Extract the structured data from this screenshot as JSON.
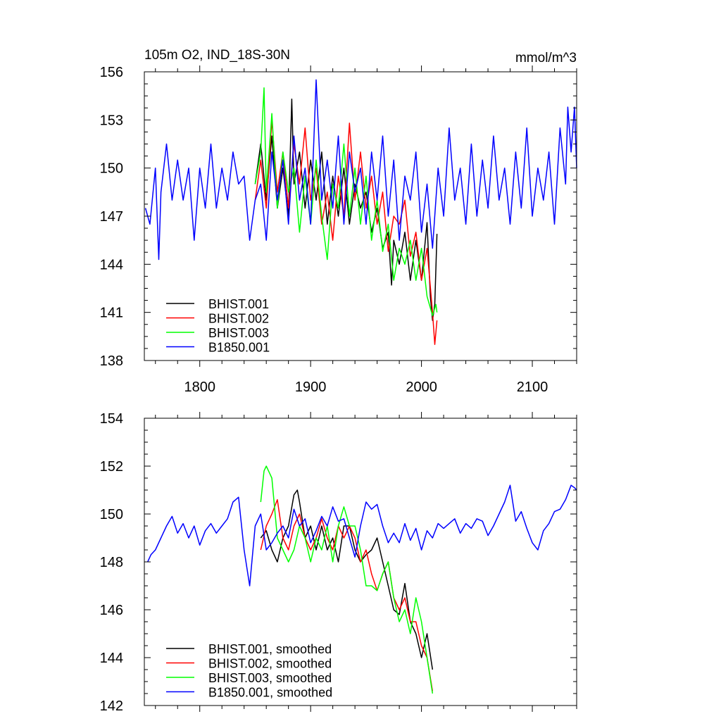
{
  "chart_data": [
    {
      "type": "line",
      "title": "105m O2, IND_18S-30N",
      "units": "mmol/m^3",
      "xlim": [
        1750,
        2140
      ],
      "ylim": [
        138,
        156
      ],
      "xticks": [
        1800,
        1900,
        2000,
        2100
      ],
      "yticks": [
        138,
        141,
        144,
        147,
        150,
        153,
        156
      ],
      "show_x_tick_labels": true,
      "grid": false,
      "legend_position": "bottom-left",
      "series": [
        {
          "name": "BHIST.001",
          "color": "#000000",
          "x": [
            1850,
            1855,
            1860,
            1865,
            1870,
            1875,
            1880,
            1883,
            1885,
            1890,
            1895,
            1900,
            1905,
            1910,
            1915,
            1920,
            1925,
            1930,
            1935,
            1940,
            1945,
            1950,
            1955,
            1960,
            1965,
            1970,
            1973,
            1975,
            1980,
            1985,
            1990,
            1995,
            2000,
            2005,
            2008,
            2010,
            2012,
            2014
          ],
          "y": [
            149,
            151.5,
            148,
            152,
            147.5,
            150,
            147,
            154.3,
            149,
            151,
            147.5,
            150.5,
            148,
            151,
            146.5,
            149.5,
            147,
            150,
            146.5,
            149,
            147.5,
            148.5,
            146,
            147.5,
            145,
            146,
            142.7,
            145.5,
            144,
            146,
            143,
            145.5,
            143,
            146.6,
            142,
            140.5,
            141.5,
            145.9
          ]
        },
        {
          "name": "BHIST.002",
          "color": "#ff0000",
          "x": [
            1850,
            1855,
            1860,
            1865,
            1870,
            1875,
            1880,
            1885,
            1890,
            1895,
            1900,
            1905,
            1910,
            1915,
            1920,
            1925,
            1930,
            1935,
            1940,
            1945,
            1950,
            1955,
            1960,
            1965,
            1970,
            1975,
            1980,
            1985,
            1990,
            1995,
            2000,
            2005,
            2010,
            2012,
            2014
          ],
          "y": [
            148,
            150.5,
            147.5,
            153,
            148.5,
            151,
            147.5,
            151.5,
            149,
            152.5,
            148,
            150,
            146.5,
            148.5,
            145.5,
            149.5,
            147,
            152.8,
            148,
            151,
            147.5,
            149.5,
            146.5,
            148.5,
            144.8,
            147,
            146.5,
            148,
            144.5,
            146,
            143,
            145,
            141,
            139,
            140.5
          ]
        },
        {
          "name": "BHIST.003",
          "color": "#00ff00",
          "x": [
            1850,
            1855,
            1858,
            1860,
            1865,
            1870,
            1875,
            1880,
            1885,
            1890,
            1895,
            1900,
            1905,
            1910,
            1915,
            1920,
            1925,
            1930,
            1935,
            1940,
            1945,
            1950,
            1955,
            1960,
            1965,
            1970,
            1975,
            1980,
            1985,
            1990,
            1995,
            2000,
            2005,
            2010,
            2013,
            2014
          ],
          "y": [
            149,
            151,
            155,
            148.5,
            153.4,
            147.5,
            151,
            148.5,
            150,
            146,
            149.5,
            146.5,
            150.5,
            147,
            144.3,
            149,
            147.5,
            151.5,
            147,
            150,
            146.5,
            149.5,
            145.5,
            148,
            144.8,
            146.5,
            143,
            145,
            144,
            145.5,
            143,
            145,
            142,
            140.8,
            141.5,
            141
          ]
        },
        {
          "name": "B1850.001",
          "color": "#0000ff",
          "x": [
            1751,
            1755,
            1760,
            1763,
            1765,
            1770,
            1775,
            1780,
            1785,
            1790,
            1795,
            1800,
            1805,
            1810,
            1815,
            1820,
            1825,
            1830,
            1835,
            1840,
            1845,
            1850,
            1855,
            1860,
            1865,
            1870,
            1875,
            1880,
            1885,
            1890,
            1895,
            1900,
            1905,
            1910,
            1915,
            1920,
            1925,
            1930,
            1935,
            1940,
            1945,
            1950,
            1955,
            1960,
            1965,
            1970,
            1975,
            1980,
            1985,
            1990,
            1995,
            2000,
            2005,
            2010,
            2015,
            2020,
            2025,
            2030,
            2035,
            2040,
            2045,
            2050,
            2055,
            2060,
            2065,
            2070,
            2075,
            2080,
            2085,
            2090,
            2095,
            2100,
            2105,
            2110,
            2115,
            2120,
            2125,
            2130,
            2132,
            2135,
            2138,
            2140
          ],
          "y": [
            147.5,
            146.5,
            150,
            144.3,
            148.5,
            151.5,
            148,
            150.5,
            148,
            150,
            145.5,
            150,
            147.5,
            151.5,
            147.5,
            150,
            148,
            151,
            149,
            149.5,
            145.5,
            148,
            149,
            145.5,
            151,
            148,
            150.5,
            146.5,
            152,
            148,
            150,
            146.5,
            155.5,
            148,
            150.5,
            147.5,
            152,
            146.5,
            151,
            148.5,
            150,
            146.5,
            151,
            148,
            152,
            147,
            150.5,
            145.5,
            149.5,
            148,
            151,
            146,
            149,
            145,
            150,
            147,
            152.5,
            148,
            150,
            146.5,
            151.5,
            147,
            150.5,
            147.5,
            152,
            148,
            150,
            146.5,
            151,
            147.5,
            152.5,
            147,
            150,
            148,
            151,
            146.5,
            152.5,
            149,
            153.8,
            151,
            153.8,
            150
          ]
        }
      ]
    },
    {
      "type": "line",
      "xlim": [
        1750,
        2140
      ],
      "ylim": [
        142,
        154
      ],
      "xticks": [
        1800,
        1900,
        2000,
        2100
      ],
      "yticks": [
        142,
        144,
        146,
        148,
        150,
        152,
        154
      ],
      "show_x_tick_labels": false,
      "grid": false,
      "legend_position": "bottom-left",
      "series": [
        {
          "name": "BHIST.001, smoothed",
          "color": "#000000",
          "x": [
            1855,
            1860,
            1865,
            1870,
            1875,
            1880,
            1885,
            1888,
            1890,
            1895,
            1900,
            1905,
            1910,
            1915,
            1920,
            1925,
            1930,
            1935,
            1940,
            1945,
            1950,
            1955,
            1960,
            1965,
            1970,
            1975,
            1980,
            1985,
            1990,
            1995,
            2000,
            2005,
            2010
          ],
          "y": [
            149,
            149.3,
            148.5,
            148,
            149,
            149.5,
            150.8,
            151,
            150.5,
            149,
            149.5,
            148.5,
            149.5,
            148.5,
            149,
            148,
            149.5,
            149.5,
            148.5,
            148,
            148.3,
            148.5,
            149,
            148,
            147,
            146,
            145.8,
            147.1,
            145.5,
            145,
            144,
            145,
            143.5
          ]
        },
        {
          "name": "BHIST.002, smoothed",
          "color": "#ff0000",
          "x": [
            1855,
            1860,
            1865,
            1870,
            1875,
            1880,
            1885,
            1890,
            1895,
            1900,
            1905,
            1910,
            1915,
            1920,
            1925,
            1930,
            1935,
            1940,
            1945,
            1950,
            1955,
            1960,
            1965,
            1970,
            1975,
            1980,
            1985,
            1990,
            1995,
            2000,
            2005,
            2010
          ],
          "y": [
            148.5,
            149.5,
            150,
            150.6,
            149,
            148.5,
            149.5,
            150,
            149,
            148.5,
            149,
            149.8,
            149,
            148.5,
            149.5,
            149,
            149.5,
            149,
            148,
            148.5,
            147.5,
            146.8,
            147.5,
            148,
            146.5,
            146,
            146.5,
            145.5,
            145.5,
            144.5,
            144,
            142.6
          ]
        },
        {
          "name": "BHIST.003, smoothed",
          "color": "#00ff00",
          "x": [
            1855,
            1858,
            1860,
            1865,
            1868,
            1870,
            1875,
            1880,
            1885,
            1890,
            1895,
            1900,
            1905,
            1910,
            1915,
            1920,
            1925,
            1930,
            1935,
            1940,
            1945,
            1950,
            1955,
            1960,
            1965,
            1970,
            1975,
            1980,
            1985,
            1990,
            1995,
            2000,
            2005,
            2010
          ],
          "y": [
            150.5,
            151.8,
            152,
            151.5,
            150,
            149,
            148.5,
            148,
            148.5,
            149.5,
            149,
            148,
            149,
            148.5,
            149.5,
            148,
            149.5,
            150.3,
            149.5,
            149.5,
            148.5,
            147,
            147,
            146.8,
            147.5,
            148,
            146.5,
            145.5,
            146,
            145,
            146.5,
            145.5,
            144,
            142.5
          ]
        },
        {
          "name": "B1850.001, smoothed",
          "color": "#0000ff",
          "x": [
            1753,
            1756,
            1760,
            1765,
            1770,
            1775,
            1780,
            1785,
            1790,
            1795,
            1800,
            1805,
            1810,
            1815,
            1820,
            1825,
            1830,
            1835,
            1840,
            1845,
            1850,
            1855,
            1860,
            1865,
            1870,
            1875,
            1880,
            1885,
            1890,
            1895,
            1900,
            1905,
            1910,
            1915,
            1920,
            1925,
            1930,
            1935,
            1940,
            1945,
            1950,
            1955,
            1960,
            1965,
            1970,
            1975,
            1980,
            1985,
            1990,
            1995,
            2000,
            2005,
            2010,
            2015,
            2020,
            2025,
            2030,
            2035,
            2040,
            2045,
            2050,
            2055,
            2060,
            2065,
            2070,
            2075,
            2080,
            2085,
            2090,
            2095,
            2100,
            2105,
            2110,
            2115,
            2120,
            2125,
            2130,
            2135,
            2138,
            2140
          ],
          "y": [
            148,
            148.3,
            148.5,
            149,
            149.5,
            149.9,
            149.2,
            149.6,
            149,
            149.5,
            148.7,
            149.3,
            149.6,
            149.2,
            149.5,
            149.8,
            150.5,
            150.7,
            148.5,
            147,
            149.5,
            150,
            148.5,
            148.8,
            149.2,
            149.5,
            149,
            150.2,
            149.5,
            149.8,
            148.8,
            149.3,
            149.9,
            149.5,
            150.3,
            149.7,
            149.8,
            149,
            148.2,
            149.5,
            150.5,
            150.2,
            150.4,
            149.5,
            148.8,
            149.2,
            148.8,
            149.6,
            148.9,
            149.4,
            148.5,
            149.3,
            149,
            149.6,
            149.4,
            149.6,
            149.8,
            149.2,
            149.6,
            149.4,
            149.8,
            149.7,
            149.1,
            149.5,
            150,
            150.5,
            151.2,
            149.7,
            150.1,
            149.4,
            148.8,
            148.5,
            149.3,
            149.6,
            150.1,
            150.2,
            150.6,
            151.2,
            151.1,
            151
          ]
        }
      ]
    }
  ]
}
